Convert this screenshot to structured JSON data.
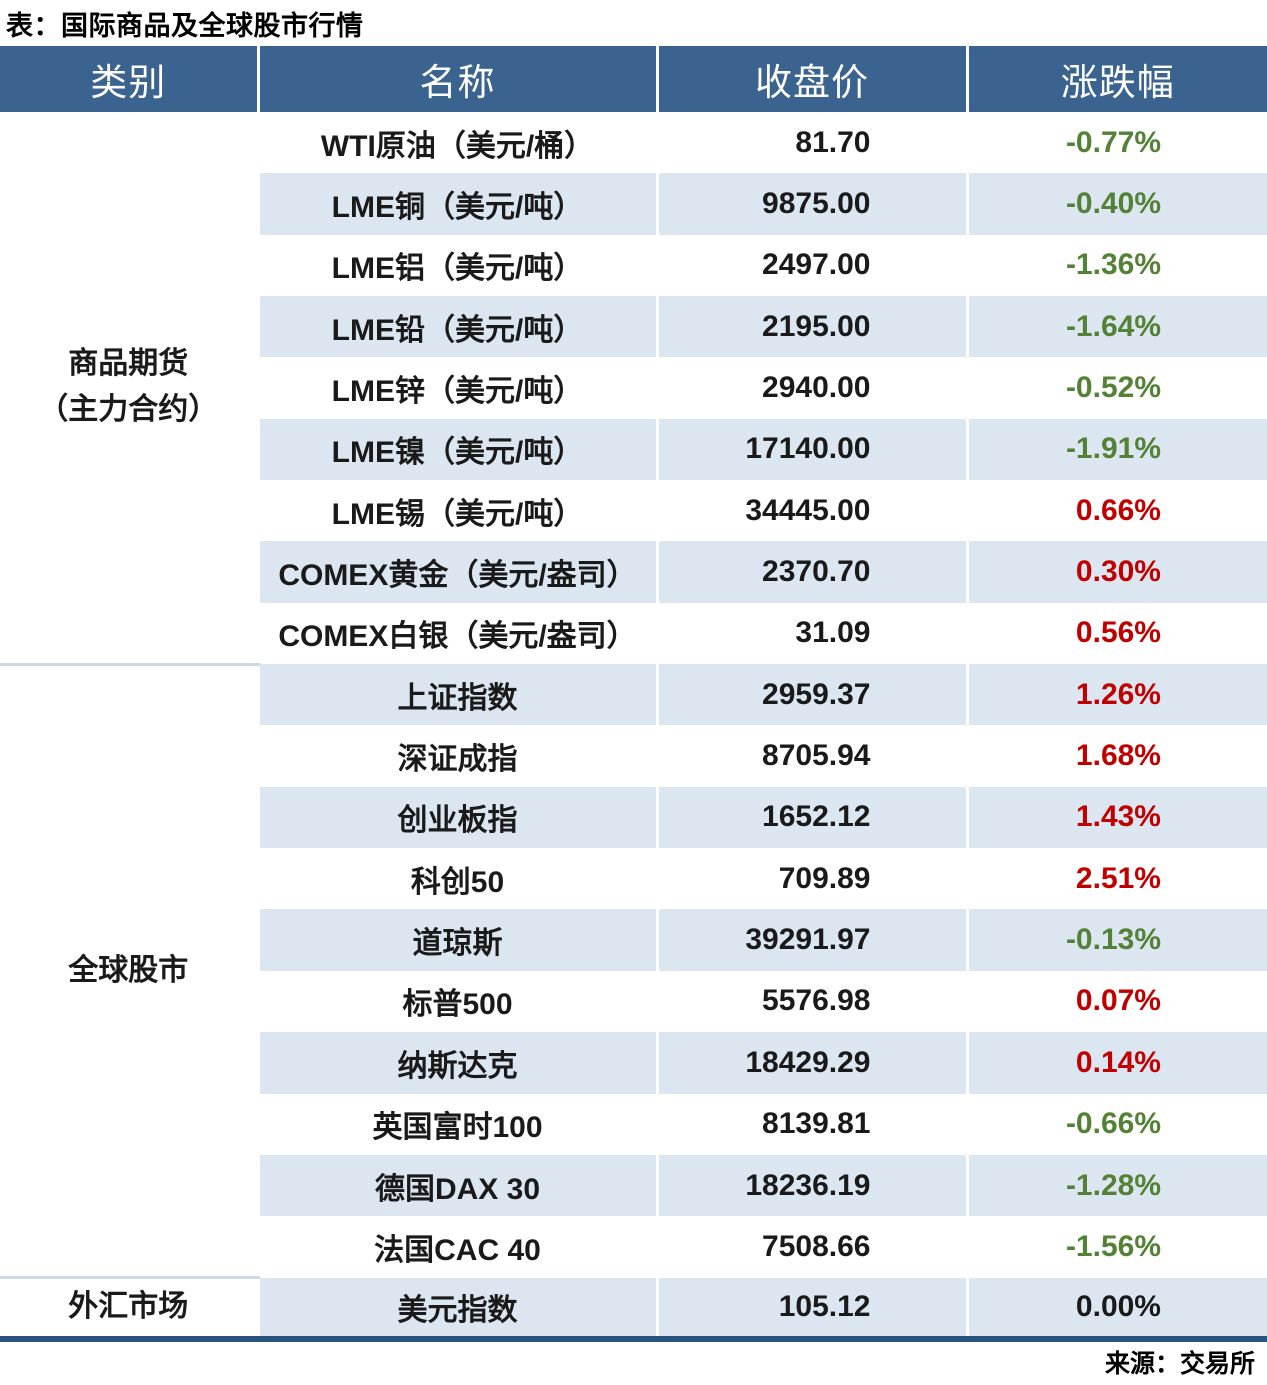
{
  "title": "表：国际商品及全球股市行情",
  "source": "来源：交易所",
  "colors": {
    "header_bg": "#3A6390",
    "row_alt_bg": "#DCE6F1",
    "bottom_border": "#2B5380",
    "up": "#C00000",
    "down": "#538135",
    "flat": "#1A1A1A"
  },
  "table": {
    "headers": [
      "类别",
      "名称",
      "收盘价",
      "涨跌幅"
    ],
    "groups": [
      {
        "category_lines": [
          "商品期货",
          "（主力合约）"
        ],
        "rows": [
          {
            "name": "WTI原油（美元/桶）",
            "close": "81.70",
            "change": "-0.77%",
            "direction": "down"
          },
          {
            "name": "LME铜（美元/吨）",
            "close": "9875.00",
            "change": "-0.40%",
            "direction": "down"
          },
          {
            "name": "LME铝（美元/吨）",
            "close": "2497.00",
            "change": "-1.36%",
            "direction": "down"
          },
          {
            "name": "LME铅（美元/吨）",
            "close": "2195.00",
            "change": "-1.64%",
            "direction": "down"
          },
          {
            "name": "LME锌（美元/吨）",
            "close": "2940.00",
            "change": "-0.52%",
            "direction": "down"
          },
          {
            "name": "LME镍（美元/吨）",
            "close": "17140.00",
            "change": "-1.91%",
            "direction": "down"
          },
          {
            "name": "LME锡（美元/吨）",
            "close": "34445.00",
            "change": "0.66%",
            "direction": "up"
          },
          {
            "name": "COMEX黄金（美元/盎司）",
            "close": "2370.70",
            "change": "0.30%",
            "direction": "up"
          },
          {
            "name": "COMEX白银（美元/盎司）",
            "close": "31.09",
            "change": "0.56%",
            "direction": "up"
          }
        ]
      },
      {
        "category_lines": [
          "全球股市"
        ],
        "rows": [
          {
            "name": "上证指数",
            "close": "2959.37",
            "change": "1.26%",
            "direction": "up"
          },
          {
            "name": "深证成指",
            "close": "8705.94",
            "change": "1.68%",
            "direction": "up"
          },
          {
            "name": "创业板指",
            "close": "1652.12",
            "change": "1.43%",
            "direction": "up"
          },
          {
            "name": "科创50",
            "close": "709.89",
            "change": "2.51%",
            "direction": "up"
          },
          {
            "name": "道琼斯",
            "close": "39291.97",
            "change": "-0.13%",
            "direction": "down"
          },
          {
            "name": "标普500",
            "close": "5576.98",
            "change": "0.07%",
            "direction": "up"
          },
          {
            "name": "纳斯达克",
            "close": "18429.29",
            "change": "0.14%",
            "direction": "up"
          },
          {
            "name": "英国富时100",
            "close": "8139.81",
            "change": "-0.66%",
            "direction": "down"
          },
          {
            "name": "德国DAX 30",
            "close": "18236.19",
            "change": "-1.28%",
            "direction": "down"
          },
          {
            "name": "法国CAC 40",
            "close": "7508.66",
            "change": "-1.56%",
            "direction": "down"
          }
        ]
      },
      {
        "category_lines": [
          "外汇市场"
        ],
        "rows": [
          {
            "name": "美元指数",
            "close": "105.12",
            "change": "0.00%",
            "direction": "flat"
          }
        ]
      }
    ]
  }
}
